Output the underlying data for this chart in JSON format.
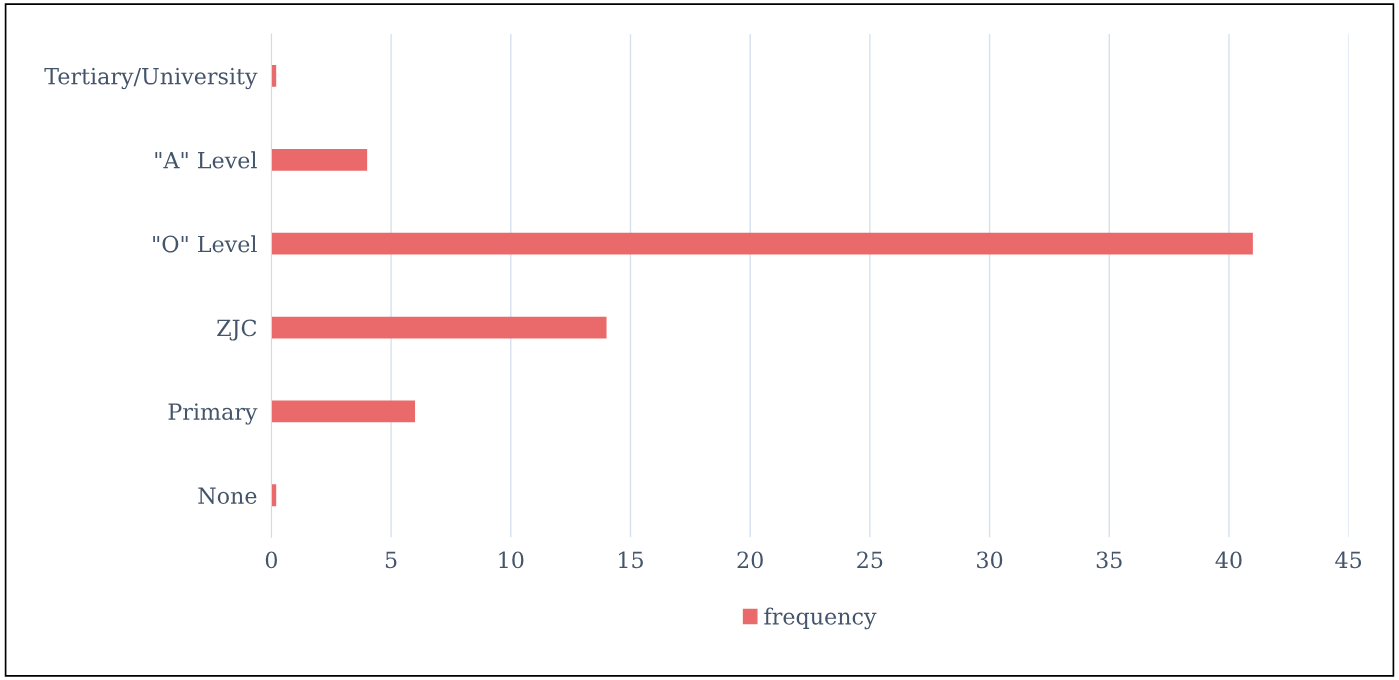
{
  "chart_data": {
    "type": "bar",
    "orientation": "horizontal",
    "categories": [
      "Tertiary/University",
      "\"A\" Level",
      "\"O\" Level",
      "ZJC",
      "Primary",
      "None"
    ],
    "series": [
      {
        "name": "frequency",
        "color": "#ea6a6b",
        "values": [
          0.2,
          4,
          41,
          14,
          6,
          0.2
        ]
      }
    ],
    "xlim": [
      0,
      45
    ],
    "xticks": [
      0,
      5,
      10,
      15,
      20,
      25,
      30,
      35,
      40,
      45
    ],
    "grid": "x",
    "legend": "bottom"
  }
}
